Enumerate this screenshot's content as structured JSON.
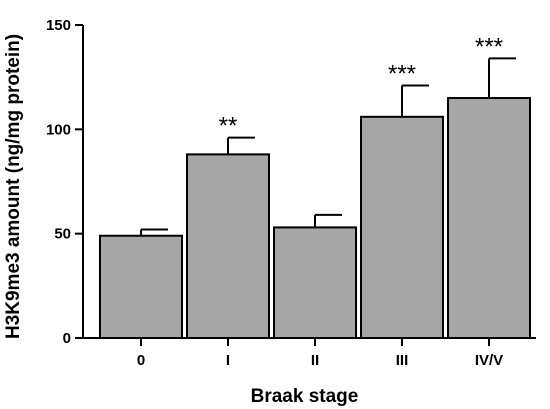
{
  "chart_data": {
    "type": "bar",
    "title": "",
    "xlabel": "Braak stage",
    "ylabel": "H3K9me3 amount (ng/mg protein)",
    "categories": [
      "0",
      "I",
      "II",
      "III",
      "IV/V"
    ],
    "values": [
      49,
      88,
      53,
      106,
      115
    ],
    "errors": [
      3,
      8,
      6,
      15,
      19
    ],
    "significance": [
      "",
      "**",
      "",
      "***",
      "***"
    ],
    "ylim": [
      0,
      150
    ],
    "yticks": [
      0,
      50,
      100,
      150
    ],
    "bar_color": "#a6a6a6",
    "grid": false,
    "legend": "none"
  }
}
